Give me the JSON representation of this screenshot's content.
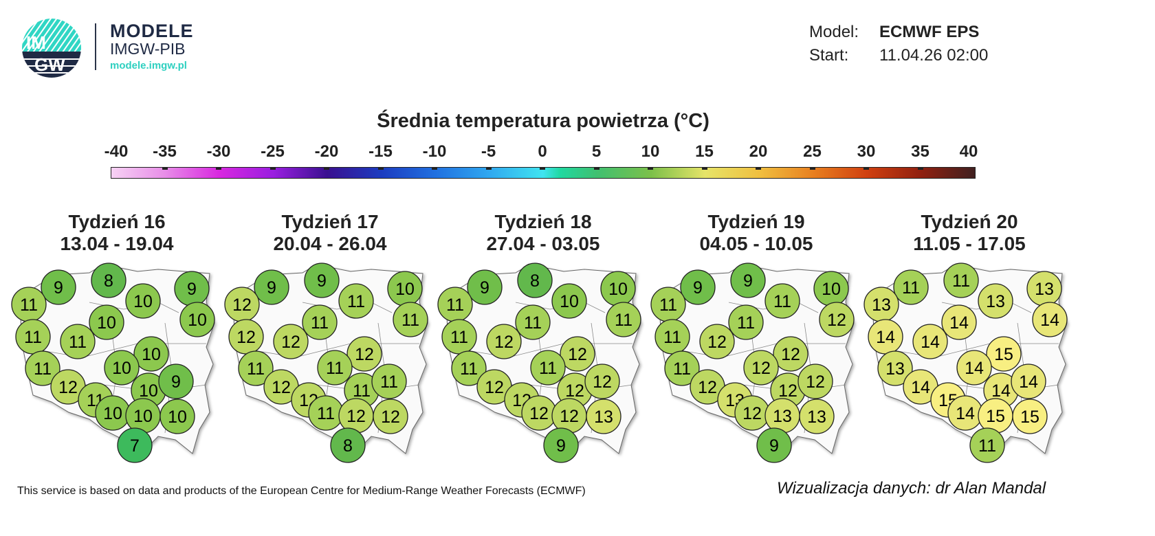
{
  "logo": {
    "text_top": "IM",
    "text_bottom": "GW",
    "brand_line1": "MODELE",
    "brand_line2": "IMGW-PIB",
    "url": "modele.imgw.pl",
    "accent": "#2fd0c0",
    "dark": "#1f2a44"
  },
  "meta": {
    "model_label": "Model:",
    "model_value": "ECMWF EPS",
    "start_label": "Start:",
    "start_value": "11.04.26 02:00"
  },
  "colorbar": {
    "title": "Średnia temperatura powietrza (°C)",
    "ticks": [
      "-40",
      "-35",
      "-30",
      "-25",
      "-20",
      "-15",
      "-10",
      "-5",
      "0",
      "5",
      "10",
      "15",
      "20",
      "25",
      "30",
      "35",
      "40"
    ],
    "range": [
      -40,
      40
    ]
  },
  "weeks": [
    {
      "title": "Tydzień 16",
      "dates": "13.04 - 19.04",
      "values": [
        9,
        8,
        9,
        11,
        10,
        10,
        10,
        11,
        11,
        10,
        11,
        10,
        12,
        10,
        9,
        11,
        10,
        10,
        10,
        7
      ]
    },
    {
      "title": "Tydzień 17",
      "dates": "20.04 - 26.04",
      "values": [
        9,
        9,
        10,
        12,
        11,
        11,
        11,
        12,
        12,
        12,
        11,
        11,
        12,
        11,
        11,
        12,
        11,
        12,
        12,
        8
      ]
    },
    {
      "title": "Tydzień 18",
      "dates": "27.04 - 03.05",
      "values": [
        9,
        8,
        10,
        11,
        10,
        11,
        11,
        11,
        12,
        12,
        11,
        11,
        12,
        12,
        12,
        12,
        12,
        12,
        13,
        9
      ]
    },
    {
      "title": "Tydzień 19",
      "dates": "04.05 - 10.05",
      "values": [
        9,
        9,
        10,
        11,
        11,
        12,
        11,
        11,
        12,
        12,
        11,
        12,
        12,
        12,
        12,
        13,
        12,
        13,
        13,
        9
      ]
    },
    {
      "title": "Tydzień 20",
      "dates": "11.05 - 17.05",
      "values": [
        11,
        11,
        13,
        13,
        13,
        14,
        14,
        14,
        14,
        15,
        13,
        14,
        14,
        14,
        14,
        15,
        14,
        15,
        15,
        11
      ]
    }
  ],
  "footer": {
    "source": "This service is based on data and products of the European Centre for Medium-Range Weather Forecasts (ECMWF)",
    "credit": "Wizualizacja danych: dr Alan Mandal"
  }
}
